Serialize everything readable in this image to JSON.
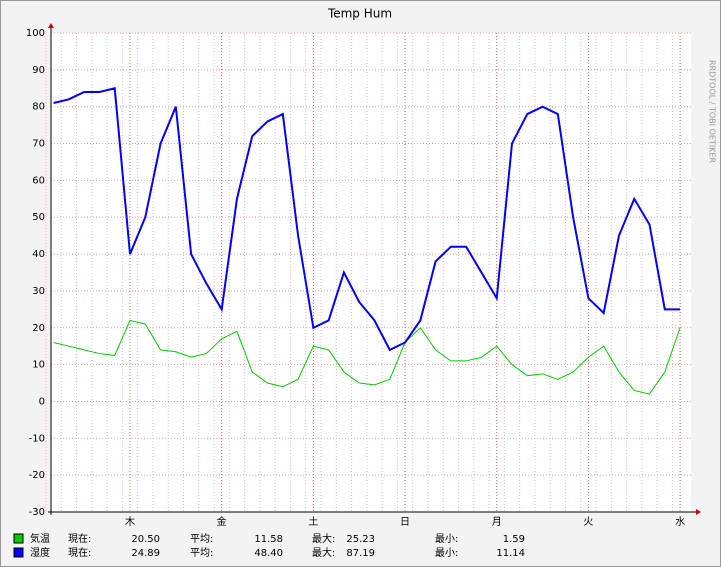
{
  "chart_data": {
    "type": "line",
    "title": "Temp Hum",
    "watermark": "RRDTOOL / TOBI OETIKER",
    "categories": [
      null,
      null,
      null,
      null,
      null,
      "木",
      null,
      null,
      null,
      null,
      null,
      "金",
      null,
      null,
      null,
      null,
      null,
      "土",
      null,
      null,
      null,
      null,
      null,
      "日",
      null,
      null,
      null,
      null,
      null,
      "月",
      null,
      null,
      null,
      null,
      null,
      "火",
      null,
      null,
      null,
      null,
      null,
      "水"
    ],
    "series": [
      {
        "name": "気温",
        "color": "#00cc00",
        "values": [
          16,
          15,
          14,
          13,
          12.5,
          22,
          21,
          14,
          13.5,
          12,
          13,
          17,
          19,
          8,
          5,
          4,
          6,
          15,
          14,
          8,
          5,
          4.5,
          6,
          16,
          20,
          14,
          11,
          11,
          12,
          15,
          10,
          7,
          7.5,
          6,
          8,
          12,
          15,
          8,
          3,
          2,
          8,
          20
        ],
        "stats": [
          {
            "label": "現在:",
            "value": "20.50"
          },
          {
            "label": "平均:",
            "value": "11.58"
          },
          {
            "label": "最大:",
            "value": "25.23"
          },
          {
            "label": "最小:",
            "value": "1.59"
          }
        ]
      },
      {
        "name": "湿度",
        "color": "#0000ff",
        "values": [
          81,
          82,
          84,
          84,
          85,
          40,
          50,
          70,
          80,
          40,
          32,
          25,
          55,
          72,
          76,
          78,
          45,
          20,
          22,
          35,
          27,
          22,
          14,
          16,
          22,
          38,
          42,
          42,
          35,
          28,
          70,
          78,
          80,
          78,
          50,
          28,
          24,
          45,
          55,
          48,
          25,
          25
        ],
        "stats": [
          {
            "label": "現在:",
            "value": "24.89"
          },
          {
            "label": "平均:",
            "value": "48.40"
          },
          {
            "label": "最大:",
            "value": "87.19"
          },
          {
            "label": "最小:",
            "value": "11.14"
          }
        ]
      }
    ],
    "ylim": [
      -30,
      100
    ],
    "yticks": [
      -30,
      -20,
      -10,
      0,
      10,
      20,
      30,
      40,
      50,
      60,
      70,
      80,
      90,
      100
    ],
    "grid": true
  }
}
